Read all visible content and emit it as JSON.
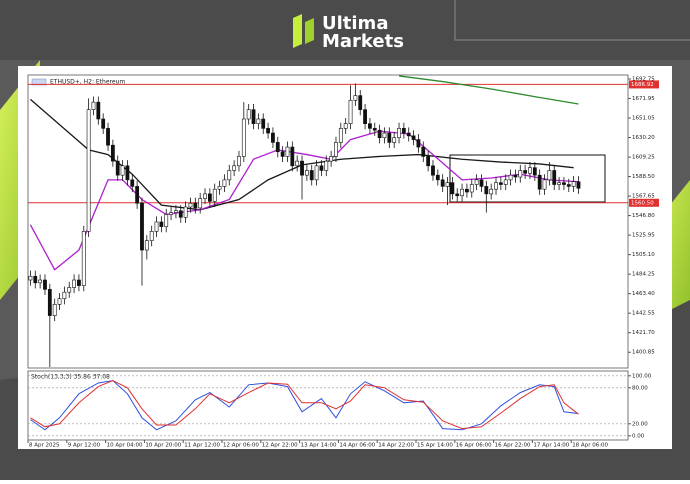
{
  "brand": {
    "line1": "Ultima",
    "line2": "Markets"
  },
  "chart_data": [
    {
      "type": "candlestick",
      "title": "ETHUSD+, H2: Ethereum",
      "categories": [
        "8 Apr 2025",
        null,
        null,
        null,
        null,
        null,
        null,
        null,
        "9 Apr 12:00",
        null,
        null,
        null,
        null,
        null,
        null,
        null,
        "10 Apr 04:00",
        null,
        null,
        null,
        null,
        null,
        null,
        null,
        "10 Apr 20:00",
        null,
        null,
        null,
        null,
        null,
        null,
        null,
        "11 Apr 12:00",
        null,
        null,
        null,
        null,
        null,
        null,
        null,
        "12 Apr 06:00",
        null,
        null,
        null,
        null,
        null,
        null,
        null,
        "12 Apr 22:00",
        null,
        null,
        null,
        null,
        null,
        null,
        null,
        "13 Apr 14:00",
        null,
        null,
        null,
        null,
        null,
        null,
        null,
        "14 Apr 06:00",
        null,
        null,
        null,
        null,
        null,
        null,
        null,
        "14 Apr 22:00",
        null,
        null,
        null,
        null,
        null,
        null,
        null,
        "15 Apr 14:00",
        null,
        null,
        null,
        null,
        null,
        null,
        null,
        "16 Apr 06:00",
        null,
        null,
        null,
        null,
        null,
        null,
        null,
        "16 Apr 22:00",
        null,
        null,
        null,
        null,
        null,
        null,
        null,
        "17 Apr 14:00",
        null,
        null,
        null,
        null,
        null,
        null,
        null,
        "18 Apr 06:00",
        null
      ],
      "open": [
        1478,
        1482,
        1475,
        1478,
        1468,
        1440,
        1452,
        1458,
        1465,
        1470,
        1478,
        1472,
        1530,
        1660,
        1668,
        1650,
        1640,
        1622,
        1605,
        1590,
        1600,
        1585,
        1578,
        1560,
        1510,
        1520,
        1530,
        1540,
        1535,
        1548,
        1550,
        1552,
        1545,
        1556,
        1560,
        1555,
        1565,
        1570,
        1562,
        1575,
        1578,
        1585,
        1595,
        1600,
        1610,
        1650,
        1660,
        1645,
        1650,
        1640,
        1635,
        1625,
        1615,
        1610,
        1620,
        1600,
        1605,
        1590,
        1595,
        1585,
        1600,
        1595,
        1605,
        1610,
        1625,
        1640,
        1645,
        1670,
        1675,
        1660,
        1645,
        1640,
        1638,
        1630,
        1635,
        1625,
        1630,
        1640,
        1635,
        1632,
        1628,
        1620,
        1610,
        1600,
        1590,
        1585,
        1578,
        1582,
        1570,
        1568,
        1575,
        1572,
        1580,
        1585,
        1578,
        1570,
        1575,
        1582,
        1580,
        1585,
        1590,
        1588,
        1595,
        1592,
        1598,
        1590,
        1575,
        1585,
        1595,
        1580,
        1582,
        1580,
        1578,
        1583
      ],
      "high": [
        1488,
        1488,
        1484,
        1484,
        1474,
        1458,
        1464,
        1471,
        1476,
        1484,
        1484,
        1536,
        1672,
        1674,
        1674,
        1656,
        1646,
        1628,
        1611,
        1606,
        1606,
        1591,
        1584,
        1566,
        1526,
        1536,
        1546,
        1546,
        1554,
        1556,
        1558,
        1558,
        1562,
        1566,
        1566,
        1571,
        1576,
        1576,
        1581,
        1584,
        1591,
        1601,
        1606,
        1616,
        1668,
        1666,
        1666,
        1656,
        1656,
        1646,
        1641,
        1631,
        1621,
        1626,
        1626,
        1611,
        1611,
        1601,
        1601,
        1606,
        1606,
        1611,
        1616,
        1631,
        1646,
        1651,
        1686,
        1688,
        1681,
        1666,
        1651,
        1646,
        1644,
        1641,
        1641,
        1636,
        1646,
        1646,
        1641,
        1638,
        1634,
        1626,
        1616,
        1606,
        1596,
        1591,
        1588,
        1588,
        1576,
        1581,
        1581,
        1586,
        1591,
        1591,
        1584,
        1581,
        1588,
        1588,
        1591,
        1596,
        1596,
        1601,
        1601,
        1604,
        1604,
        1596,
        1591,
        1604,
        1601,
        1588,
        1588,
        1586,
        1589,
        1589
      ],
      "low": [
        1472,
        1469,
        1469,
        1462,
        1385,
        1434,
        1446,
        1452,
        1459,
        1464,
        1466,
        1466,
        1524,
        1654,
        1644,
        1634,
        1616,
        1599,
        1584,
        1584,
        1579,
        1572,
        1554,
        1472,
        1500,
        1514,
        1524,
        1529,
        1529,
        1542,
        1544,
        1539,
        1539,
        1550,
        1549,
        1549,
        1559,
        1556,
        1556,
        1569,
        1572,
        1579,
        1589,
        1594,
        1604,
        1644,
        1639,
        1639,
        1634,
        1629,
        1619,
        1609,
        1604,
        1604,
        1594,
        1594,
        1564,
        1584,
        1579,
        1579,
        1589,
        1589,
        1599,
        1604,
        1619,
        1634,
        1639,
        1664,
        1654,
        1639,
        1634,
        1632,
        1624,
        1624,
        1619,
        1619,
        1624,
        1629,
        1626,
        1622,
        1614,
        1604,
        1594,
        1584,
        1579,
        1572,
        1558,
        1564,
        1562,
        1562,
        1566,
        1566,
        1574,
        1572,
        1550,
        1564,
        1569,
        1574,
        1574,
        1579,
        1582,
        1582,
        1586,
        1586,
        1584,
        1569,
        1569,
        1579,
        1574,
        1574,
        1574,
        1572,
        1572,
        1570
      ],
      "close": [
        1482,
        1475,
        1478,
        1468,
        1440,
        1452,
        1458,
        1465,
        1470,
        1478,
        1472,
        1530,
        1660,
        1668,
        1650,
        1640,
        1622,
        1605,
        1590,
        1600,
        1585,
        1578,
        1560,
        1510,
        1520,
        1530,
        1540,
        1535,
        1548,
        1550,
        1552,
        1545,
        1556,
        1560,
        1555,
        1565,
        1570,
        1562,
        1575,
        1578,
        1585,
        1595,
        1600,
        1610,
        1650,
        1660,
        1645,
        1650,
        1640,
        1635,
        1625,
        1615,
        1610,
        1620,
        1600,
        1605,
        1590,
        1595,
        1585,
        1600,
        1595,
        1605,
        1610,
        1625,
        1640,
        1645,
        1670,
        1675,
        1660,
        1645,
        1640,
        1638,
        1630,
        1635,
        1625,
        1630,
        1640,
        1635,
        1632,
        1628,
        1620,
        1610,
        1600,
        1590,
        1585,
        1578,
        1582,
        1570,
        1568,
        1575,
        1572,
        1580,
        1585,
        1578,
        1570,
        1575,
        1582,
        1580,
        1585,
        1590,
        1588,
        1595,
        1592,
        1598,
        1590,
        1575,
        1585,
        1595,
        1580,
        1582,
        1580,
        1578,
        1583,
        1576
      ],
      "series": [
        {
          "color": "#1a1a1a",
          "x": [
            0,
            12,
            16,
            21,
            27,
            35,
            43,
            49,
            56,
            64,
            72,
            80,
            89,
            97,
            105,
            112
          ],
          "values": [
            1671,
            1617,
            1612,
            1591,
            1558,
            1553,
            1564,
            1585,
            1601,
            1607,
            1610,
            1612,
            1607,
            1604,
            1602,
            1598
          ]
        },
        {
          "color": "#b01fd0",
          "x": [
            0,
            5,
            10,
            16,
            19,
            23,
            28,
            35,
            41,
            46,
            51,
            57,
            62,
            66,
            72,
            78,
            83,
            89,
            95,
            101,
            107,
            113
          ],
          "values": [
            1537,
            1489,
            1510,
            1585,
            1585,
            1564,
            1548,
            1553,
            1564,
            1607,
            1617,
            1612,
            1607,
            1628,
            1637,
            1634,
            1612,
            1585,
            1587,
            1591,
            1585,
            1583
          ]
        },
        {
          "color": "#2e8b2e",
          "x": [
            76,
            85,
            95,
            105,
            113
          ],
          "values": [
            1696,
            1690,
            1682,
            1673,
            1666
          ]
        }
      ],
      "hlines": [
        {
          "value": 1686.92,
          "label": "1686.92",
          "color": "#e03030"
        },
        {
          "value": 1560.5,
          "label": "1560.50",
          "color": "#e03030"
        }
      ],
      "ylim": [
        1384,
        1697
      ],
      "yticks": [
        {
          "value": 1692.75,
          "label": "1692.75"
        },
        {
          "value": 1671.95,
          "label": "1671.95"
        },
        {
          "value": 1651.05,
          "label": "1651.05"
        },
        {
          "value": 1630.2,
          "label": "1630.20"
        },
        {
          "value": 1609.25,
          "label": "1609.25"
        },
        {
          "value": 1588.5,
          "label": "1588.50"
        },
        {
          "value": 1567.65,
          "label": "1567.65"
        },
        {
          "value": 1546.8,
          "label": "1546.80"
        },
        {
          "value": 1525.95,
          "label": "1525.95"
        },
        {
          "value": 1505.1,
          "label": "1505.10"
        },
        {
          "value": 1484.25,
          "label": "1484.25"
        },
        {
          "value": 1463.4,
          "label": "1463.40"
        },
        {
          "value": 1442.55,
          "label": "1442.55"
        },
        {
          "value": 1421.7,
          "label": "1421.70"
        },
        {
          "value": 1400.85,
          "label": "1400.85"
        }
      ]
    },
    {
      "type": "line",
      "title": "Stoch(13,3,3) 35.86 37.08",
      "series": [
        {
          "color": "#3050e0",
          "x": [
            0,
            3,
            6,
            10,
            14,
            17,
            20,
            23,
            26,
            30,
            34,
            37,
            41,
            45,
            49,
            53,
            56,
            60,
            63,
            66,
            69,
            73,
            77,
            81,
            85,
            89,
            93,
            97,
            101,
            105,
            108,
            110,
            113
          ],
          "values": [
            27,
            10,
            30,
            70,
            88,
            92,
            70,
            30,
            10,
            25,
            60,
            72,
            48,
            85,
            88,
            82,
            40,
            62,
            30,
            70,
            90,
            75,
            55,
            58,
            12,
            10,
            20,
            50,
            72,
            85,
            82,
            40,
            37
          ]
        },
        {
          "color": "#e03030",
          "x": [
            0,
            3,
            6,
            10,
            14,
            17,
            20,
            23,
            26,
            30,
            34,
            37,
            41,
            45,
            49,
            53,
            56,
            60,
            63,
            66,
            69,
            73,
            77,
            81,
            85,
            89,
            93,
            97,
            101,
            105,
            108,
            110,
            113
          ],
          "values": [
            30,
            15,
            20,
            55,
            82,
            92,
            80,
            45,
            18,
            18,
            45,
            70,
            55,
            72,
            88,
            86,
            55,
            55,
            45,
            58,
            85,
            80,
            60,
            56,
            25,
            12,
            15,
            38,
            62,
            82,
            85,
            55,
            36
          ]
        }
      ],
      "ylim": [
        -7,
        108
      ],
      "yticks": [
        {
          "value": 100,
          "label": "100.00"
        },
        {
          "value": 80,
          "label": "80.00"
        },
        {
          "value": 20,
          "label": "20.00"
        },
        {
          "value": 0,
          "label": "0.00"
        }
      ]
    }
  ]
}
